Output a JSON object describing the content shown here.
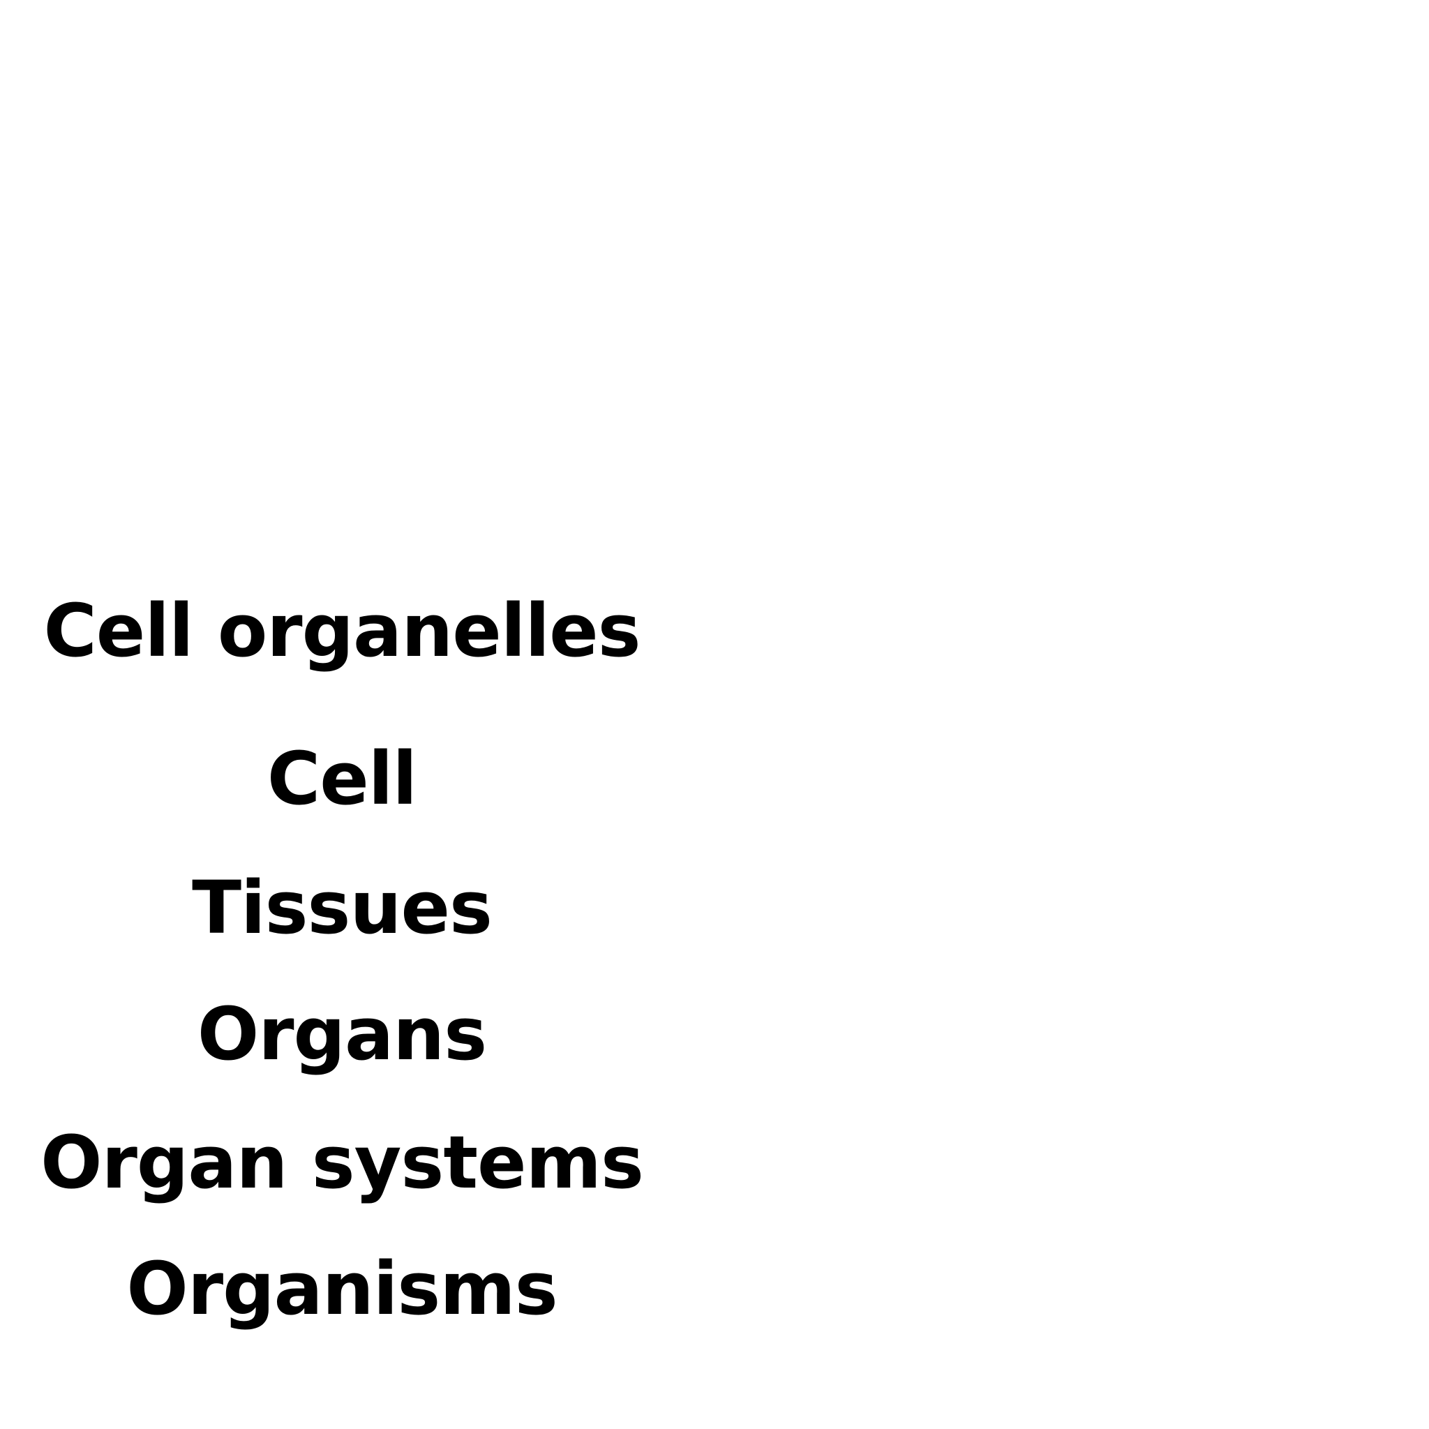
{
  "levels": [
    {
      "label": "Cell organelles"
    },
    {
      "label": "Cell"
    },
    {
      "label": "Tissues"
    },
    {
      "label": "Organs"
    },
    {
      "label": "Organ systems"
    },
    {
      "label": "Organisms"
    }
  ],
  "colors": {
    "background": "#ffffff",
    "text": "#000000"
  }
}
